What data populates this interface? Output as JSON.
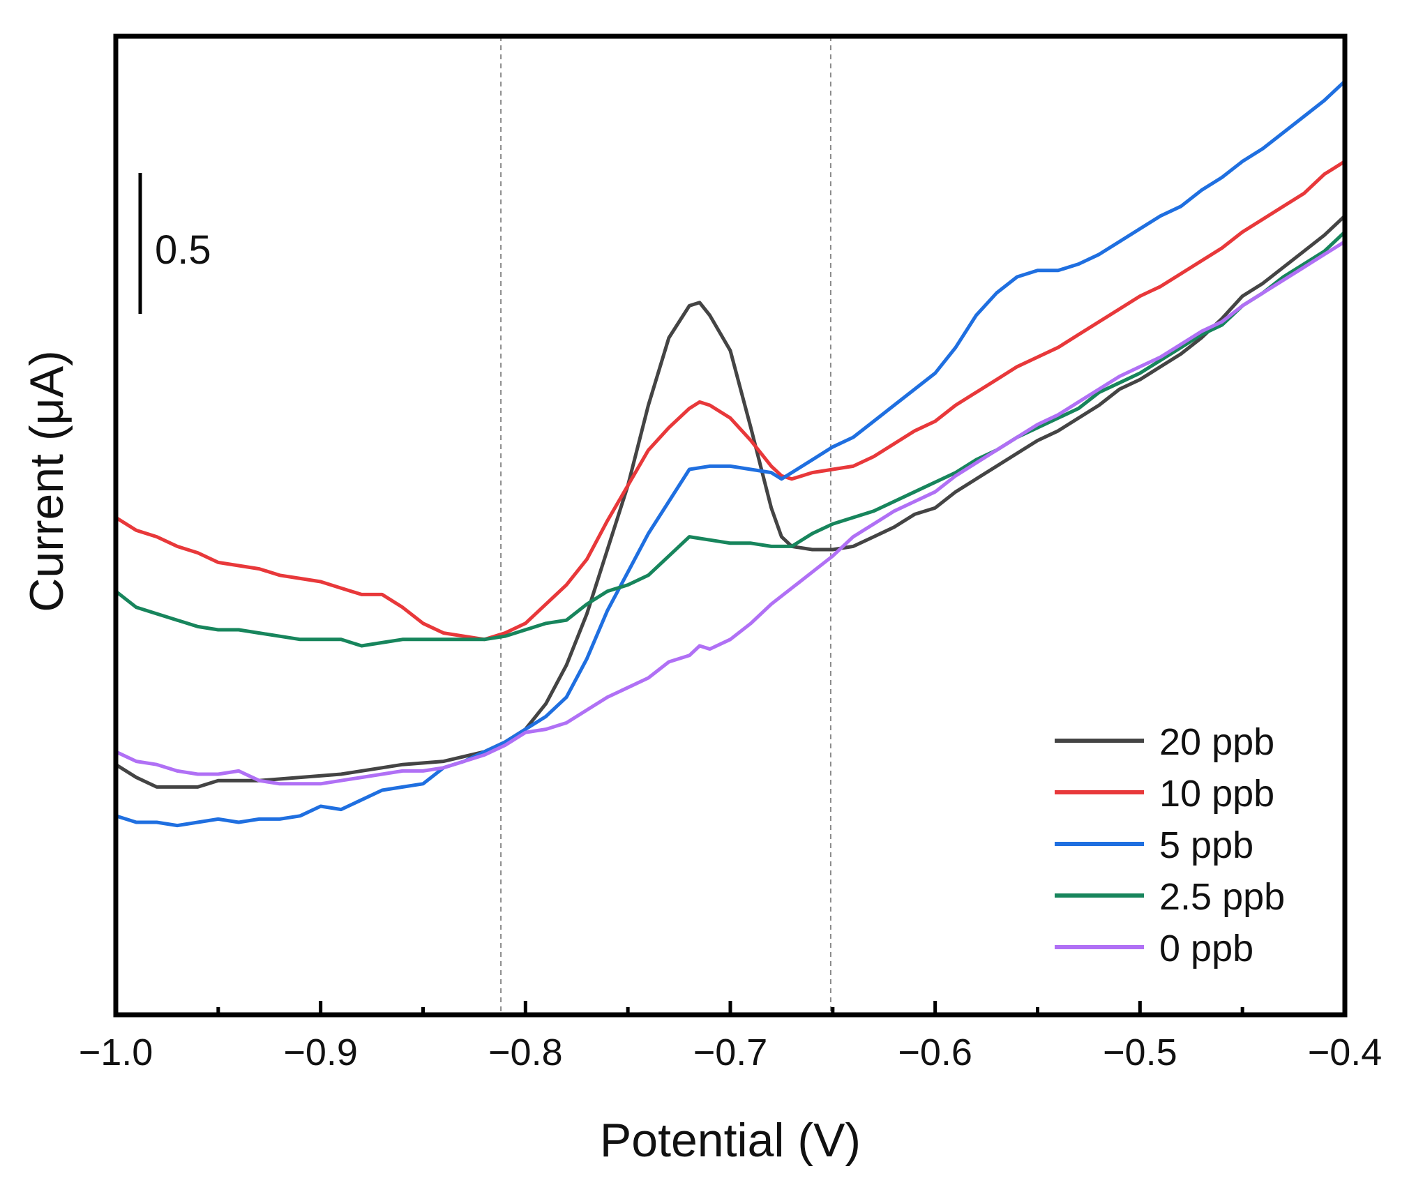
{
  "chart_data": {
    "type": "line",
    "title": "",
    "xlabel": "Potential (V)",
    "ylabel": "Current (μA)",
    "xlim": [
      -1.0,
      -0.4
    ],
    "ylim": [
      -1.75,
      1.3
    ],
    "xticks": [
      -1.0,
      -0.9,
      -0.8,
      -0.7,
      -0.6,
      -0.5,
      -0.4
    ],
    "xtick_labels": [
      "−1.0",
      "−0.9",
      "−0.8",
      "−0.7",
      "−0.6",
      "−0.5",
      "−0.4"
    ],
    "y_tick_labels_shown": false,
    "scale_bar": {
      "label": "0.5",
      "value": 0.5
    },
    "reference_lines": [
      -0.812,
      -0.651
    ],
    "legend_position": "bottom-right",
    "series": [
      {
        "name": "20 ppb",
        "color": "#444444",
        "points": [
          [
            -1.0,
            -0.97
          ],
          [
            -0.99,
            -1.01
          ],
          [
            -0.98,
            -1.04
          ],
          [
            -0.96,
            -1.04
          ],
          [
            -0.95,
            -1.02
          ],
          [
            -0.93,
            -1.02
          ],
          [
            -0.91,
            -1.01
          ],
          [
            -0.89,
            -1.0
          ],
          [
            -0.87,
            -0.98
          ],
          [
            -0.86,
            -0.97
          ],
          [
            -0.84,
            -0.96
          ],
          [
            -0.82,
            -0.93
          ],
          [
            -0.81,
            -0.9
          ],
          [
            -0.8,
            -0.86
          ],
          [
            -0.79,
            -0.78
          ],
          [
            -0.78,
            -0.66
          ],
          [
            -0.77,
            -0.5
          ],
          [
            -0.76,
            -0.3
          ],
          [
            -0.75,
            -0.1
          ],
          [
            -0.74,
            0.15
          ],
          [
            -0.73,
            0.36
          ],
          [
            -0.72,
            0.46
          ],
          [
            -0.715,
            0.47
          ],
          [
            -0.71,
            0.43
          ],
          [
            -0.7,
            0.32
          ],
          [
            -0.69,
            0.08
          ],
          [
            -0.68,
            -0.17
          ],
          [
            -0.675,
            -0.26
          ],
          [
            -0.67,
            -0.29
          ],
          [
            -0.66,
            -0.3
          ],
          [
            -0.65,
            -0.3
          ],
          [
            -0.64,
            -0.29
          ],
          [
            -0.63,
            -0.26
          ],
          [
            -0.62,
            -0.23
          ],
          [
            -0.61,
            -0.19
          ],
          [
            -0.6,
            -0.17
          ],
          [
            -0.59,
            -0.12
          ],
          [
            -0.58,
            -0.08
          ],
          [
            -0.57,
            -0.04
          ],
          [
            -0.56,
            0.0
          ],
          [
            -0.55,
            0.04
          ],
          [
            -0.54,
            0.07
          ],
          [
            -0.53,
            0.11
          ],
          [
            -0.52,
            0.15
          ],
          [
            -0.51,
            0.2
          ],
          [
            -0.5,
            0.23
          ],
          [
            -0.49,
            0.27
          ],
          [
            -0.48,
            0.31
          ],
          [
            -0.47,
            0.36
          ],
          [
            -0.46,
            0.42
          ],
          [
            -0.45,
            0.49
          ],
          [
            -0.44,
            0.53
          ],
          [
            -0.43,
            0.58
          ],
          [
            -0.42,
            0.63
          ],
          [
            -0.41,
            0.68
          ],
          [
            -0.4,
            0.74
          ]
        ]
      },
      {
        "name": "10 ppb",
        "color": "#e8383a",
        "points": [
          [
            -1.0,
            -0.2
          ],
          [
            -0.99,
            -0.24
          ],
          [
            -0.98,
            -0.26
          ],
          [
            -0.97,
            -0.29
          ],
          [
            -0.96,
            -0.31
          ],
          [
            -0.95,
            -0.34
          ],
          [
            -0.94,
            -0.35
          ],
          [
            -0.93,
            -0.36
          ],
          [
            -0.92,
            -0.38
          ],
          [
            -0.91,
            -0.39
          ],
          [
            -0.9,
            -0.4
          ],
          [
            -0.89,
            -0.42
          ],
          [
            -0.88,
            -0.44
          ],
          [
            -0.87,
            -0.44
          ],
          [
            -0.86,
            -0.48
          ],
          [
            -0.85,
            -0.53
          ],
          [
            -0.84,
            -0.56
          ],
          [
            -0.83,
            -0.57
          ],
          [
            -0.82,
            -0.58
          ],
          [
            -0.81,
            -0.56
          ],
          [
            -0.8,
            -0.53
          ],
          [
            -0.79,
            -0.47
          ],
          [
            -0.78,
            -0.41
          ],
          [
            -0.77,
            -0.33
          ],
          [
            -0.76,
            -0.21
          ],
          [
            -0.75,
            -0.1
          ],
          [
            -0.74,
            0.01
          ],
          [
            -0.73,
            0.08
          ],
          [
            -0.72,
            0.14
          ],
          [
            -0.715,
            0.16
          ],
          [
            -0.71,
            0.15
          ],
          [
            -0.7,
            0.11
          ],
          [
            -0.69,
            0.04
          ],
          [
            -0.68,
            -0.04
          ],
          [
            -0.675,
            -0.07
          ],
          [
            -0.67,
            -0.08
          ],
          [
            -0.66,
            -0.06
          ],
          [
            -0.65,
            -0.05
          ],
          [
            -0.64,
            -0.04
          ],
          [
            -0.63,
            -0.01
          ],
          [
            -0.62,
            0.03
          ],
          [
            -0.61,
            0.07
          ],
          [
            -0.6,
            0.1
          ],
          [
            -0.59,
            0.15
          ],
          [
            -0.58,
            0.19
          ],
          [
            -0.57,
            0.23
          ],
          [
            -0.56,
            0.27
          ],
          [
            -0.55,
            0.3
          ],
          [
            -0.54,
            0.33
          ],
          [
            -0.53,
            0.37
          ],
          [
            -0.52,
            0.41
          ],
          [
            -0.51,
            0.45
          ],
          [
            -0.5,
            0.49
          ],
          [
            -0.49,
            0.52
          ],
          [
            -0.48,
            0.56
          ],
          [
            -0.47,
            0.6
          ],
          [
            -0.46,
            0.64
          ],
          [
            -0.45,
            0.69
          ],
          [
            -0.44,
            0.73
          ],
          [
            -0.43,
            0.77
          ],
          [
            -0.42,
            0.81
          ],
          [
            -0.41,
            0.87
          ],
          [
            -0.4,
            0.91
          ]
        ]
      },
      {
        "name": "5 ppb",
        "color": "#1f6fe0",
        "points": [
          [
            -1.0,
            -1.13
          ],
          [
            -0.99,
            -1.15
          ],
          [
            -0.98,
            -1.15
          ],
          [
            -0.97,
            -1.16
          ],
          [
            -0.96,
            -1.15
          ],
          [
            -0.95,
            -1.14
          ],
          [
            -0.94,
            -1.15
          ],
          [
            -0.93,
            -1.14
          ],
          [
            -0.92,
            -1.14
          ],
          [
            -0.91,
            -1.13
          ],
          [
            -0.9,
            -1.1
          ],
          [
            -0.89,
            -1.11
          ],
          [
            -0.88,
            -1.08
          ],
          [
            -0.87,
            -1.05
          ],
          [
            -0.86,
            -1.04
          ],
          [
            -0.85,
            -1.03
          ],
          [
            -0.84,
            -0.98
          ],
          [
            -0.83,
            -0.96
          ],
          [
            -0.82,
            -0.93
          ],
          [
            -0.81,
            -0.9
          ],
          [
            -0.8,
            -0.86
          ],
          [
            -0.79,
            -0.82
          ],
          [
            -0.78,
            -0.76
          ],
          [
            -0.77,
            -0.64
          ],
          [
            -0.76,
            -0.49
          ],
          [
            -0.75,
            -0.37
          ],
          [
            -0.74,
            -0.25
          ],
          [
            -0.73,
            -0.15
          ],
          [
            -0.72,
            -0.05
          ],
          [
            -0.71,
            -0.04
          ],
          [
            -0.7,
            -0.04
          ],
          [
            -0.69,
            -0.05
          ],
          [
            -0.68,
            -0.06
          ],
          [
            -0.675,
            -0.08
          ],
          [
            -0.67,
            -0.06
          ],
          [
            -0.66,
            -0.02
          ],
          [
            -0.65,
            0.02
          ],
          [
            -0.64,
            0.05
          ],
          [
            -0.63,
            0.1
          ],
          [
            -0.62,
            0.15
          ],
          [
            -0.61,
            0.2
          ],
          [
            -0.6,
            0.25
          ],
          [
            -0.59,
            0.33
          ],
          [
            -0.58,
            0.43
          ],
          [
            -0.57,
            0.5
          ],
          [
            -0.56,
            0.55
          ],
          [
            -0.55,
            0.57
          ],
          [
            -0.54,
            0.57
          ],
          [
            -0.53,
            0.59
          ],
          [
            -0.52,
            0.62
          ],
          [
            -0.51,
            0.66
          ],
          [
            -0.5,
            0.7
          ],
          [
            -0.49,
            0.74
          ],
          [
            -0.48,
            0.77
          ],
          [
            -0.47,
            0.82
          ],
          [
            -0.46,
            0.86
          ],
          [
            -0.45,
            0.91
          ],
          [
            -0.44,
            0.95
          ],
          [
            -0.43,
            1.0
          ],
          [
            -0.42,
            1.05
          ],
          [
            -0.41,
            1.1
          ],
          [
            -0.4,
            1.16
          ]
        ]
      },
      {
        "name": "2.5 ppb",
        "color": "#17855c",
        "points": [
          [
            -1.0,
            -0.43
          ],
          [
            -0.99,
            -0.48
          ],
          [
            -0.98,
            -0.5
          ],
          [
            -0.97,
            -0.52
          ],
          [
            -0.96,
            -0.54
          ],
          [
            -0.95,
            -0.55
          ],
          [
            -0.94,
            -0.55
          ],
          [
            -0.93,
            -0.56
          ],
          [
            -0.92,
            -0.57
          ],
          [
            -0.91,
            -0.58
          ],
          [
            -0.9,
            -0.58
          ],
          [
            -0.89,
            -0.58
          ],
          [
            -0.88,
            -0.6
          ],
          [
            -0.87,
            -0.59
          ],
          [
            -0.86,
            -0.58
          ],
          [
            -0.85,
            -0.58
          ],
          [
            -0.84,
            -0.58
          ],
          [
            -0.83,
            -0.58
          ],
          [
            -0.82,
            -0.58
          ],
          [
            -0.81,
            -0.57
          ],
          [
            -0.8,
            -0.55
          ],
          [
            -0.79,
            -0.53
          ],
          [
            -0.78,
            -0.52
          ],
          [
            -0.77,
            -0.47
          ],
          [
            -0.76,
            -0.43
          ],
          [
            -0.75,
            -0.41
          ],
          [
            -0.74,
            -0.38
          ],
          [
            -0.73,
            -0.32
          ],
          [
            -0.72,
            -0.26
          ],
          [
            -0.71,
            -0.27
          ],
          [
            -0.7,
            -0.28
          ],
          [
            -0.69,
            -0.28
          ],
          [
            -0.68,
            -0.29
          ],
          [
            -0.67,
            -0.29
          ],
          [
            -0.66,
            -0.25
          ],
          [
            -0.65,
            -0.22
          ],
          [
            -0.64,
            -0.2
          ],
          [
            -0.63,
            -0.18
          ],
          [
            -0.62,
            -0.15
          ],
          [
            -0.61,
            -0.12
          ],
          [
            -0.6,
            -0.09
          ],
          [
            -0.59,
            -0.06
          ],
          [
            -0.58,
            -0.02
          ],
          [
            -0.57,
            0.01
          ],
          [
            -0.56,
            0.05
          ],
          [
            -0.55,
            0.08
          ],
          [
            -0.54,
            0.11
          ],
          [
            -0.53,
            0.14
          ],
          [
            -0.52,
            0.19
          ],
          [
            -0.51,
            0.22
          ],
          [
            -0.5,
            0.25
          ],
          [
            -0.49,
            0.29
          ],
          [
            -0.48,
            0.33
          ],
          [
            -0.47,
            0.37
          ],
          [
            -0.46,
            0.4
          ],
          [
            -0.45,
            0.46
          ],
          [
            -0.44,
            0.5
          ],
          [
            -0.43,
            0.55
          ],
          [
            -0.42,
            0.59
          ],
          [
            -0.41,
            0.63
          ],
          [
            -0.4,
            0.69
          ]
        ]
      },
      {
        "name": "0 ppb",
        "color": "#b070f5",
        "points": [
          [
            -1.0,
            -0.93
          ],
          [
            -0.99,
            -0.96
          ],
          [
            -0.98,
            -0.97
          ],
          [
            -0.97,
            -0.99
          ],
          [
            -0.96,
            -1.0
          ],
          [
            -0.95,
            -1.0
          ],
          [
            -0.94,
            -0.99
          ],
          [
            -0.93,
            -1.02
          ],
          [
            -0.92,
            -1.03
          ],
          [
            -0.91,
            -1.03
          ],
          [
            -0.9,
            -1.03
          ],
          [
            -0.89,
            -1.02
          ],
          [
            -0.88,
            -1.01
          ],
          [
            -0.87,
            -1.0
          ],
          [
            -0.86,
            -0.99
          ],
          [
            -0.85,
            -0.99
          ],
          [
            -0.84,
            -0.98
          ],
          [
            -0.83,
            -0.96
          ],
          [
            -0.82,
            -0.94
          ],
          [
            -0.81,
            -0.91
          ],
          [
            -0.8,
            -0.87
          ],
          [
            -0.79,
            -0.86
          ],
          [
            -0.78,
            -0.84
          ],
          [
            -0.77,
            -0.8
          ],
          [
            -0.76,
            -0.76
          ],
          [
            -0.75,
            -0.73
          ],
          [
            -0.74,
            -0.7
          ],
          [
            -0.73,
            -0.65
          ],
          [
            -0.72,
            -0.63
          ],
          [
            -0.715,
            -0.6
          ],
          [
            -0.71,
            -0.61
          ],
          [
            -0.7,
            -0.58
          ],
          [
            -0.69,
            -0.53
          ],
          [
            -0.68,
            -0.47
          ],
          [
            -0.67,
            -0.42
          ],
          [
            -0.66,
            -0.37
          ],
          [
            -0.65,
            -0.32
          ],
          [
            -0.64,
            -0.26
          ],
          [
            -0.63,
            -0.22
          ],
          [
            -0.62,
            -0.18
          ],
          [
            -0.61,
            -0.15
          ],
          [
            -0.6,
            -0.12
          ],
          [
            -0.59,
            -0.07
          ],
          [
            -0.58,
            -0.03
          ],
          [
            -0.57,
            0.01
          ],
          [
            -0.56,
            0.05
          ],
          [
            -0.55,
            0.09
          ],
          [
            -0.54,
            0.12
          ],
          [
            -0.53,
            0.16
          ],
          [
            -0.52,
            0.2
          ],
          [
            -0.51,
            0.24
          ],
          [
            -0.5,
            0.27
          ],
          [
            -0.49,
            0.3
          ],
          [
            -0.48,
            0.34
          ],
          [
            -0.47,
            0.38
          ],
          [
            -0.46,
            0.41
          ],
          [
            -0.45,
            0.46
          ],
          [
            -0.44,
            0.5
          ],
          [
            -0.43,
            0.54
          ],
          [
            -0.42,
            0.58
          ],
          [
            -0.41,
            0.62
          ],
          [
            -0.4,
            0.66
          ]
        ]
      }
    ]
  }
}
